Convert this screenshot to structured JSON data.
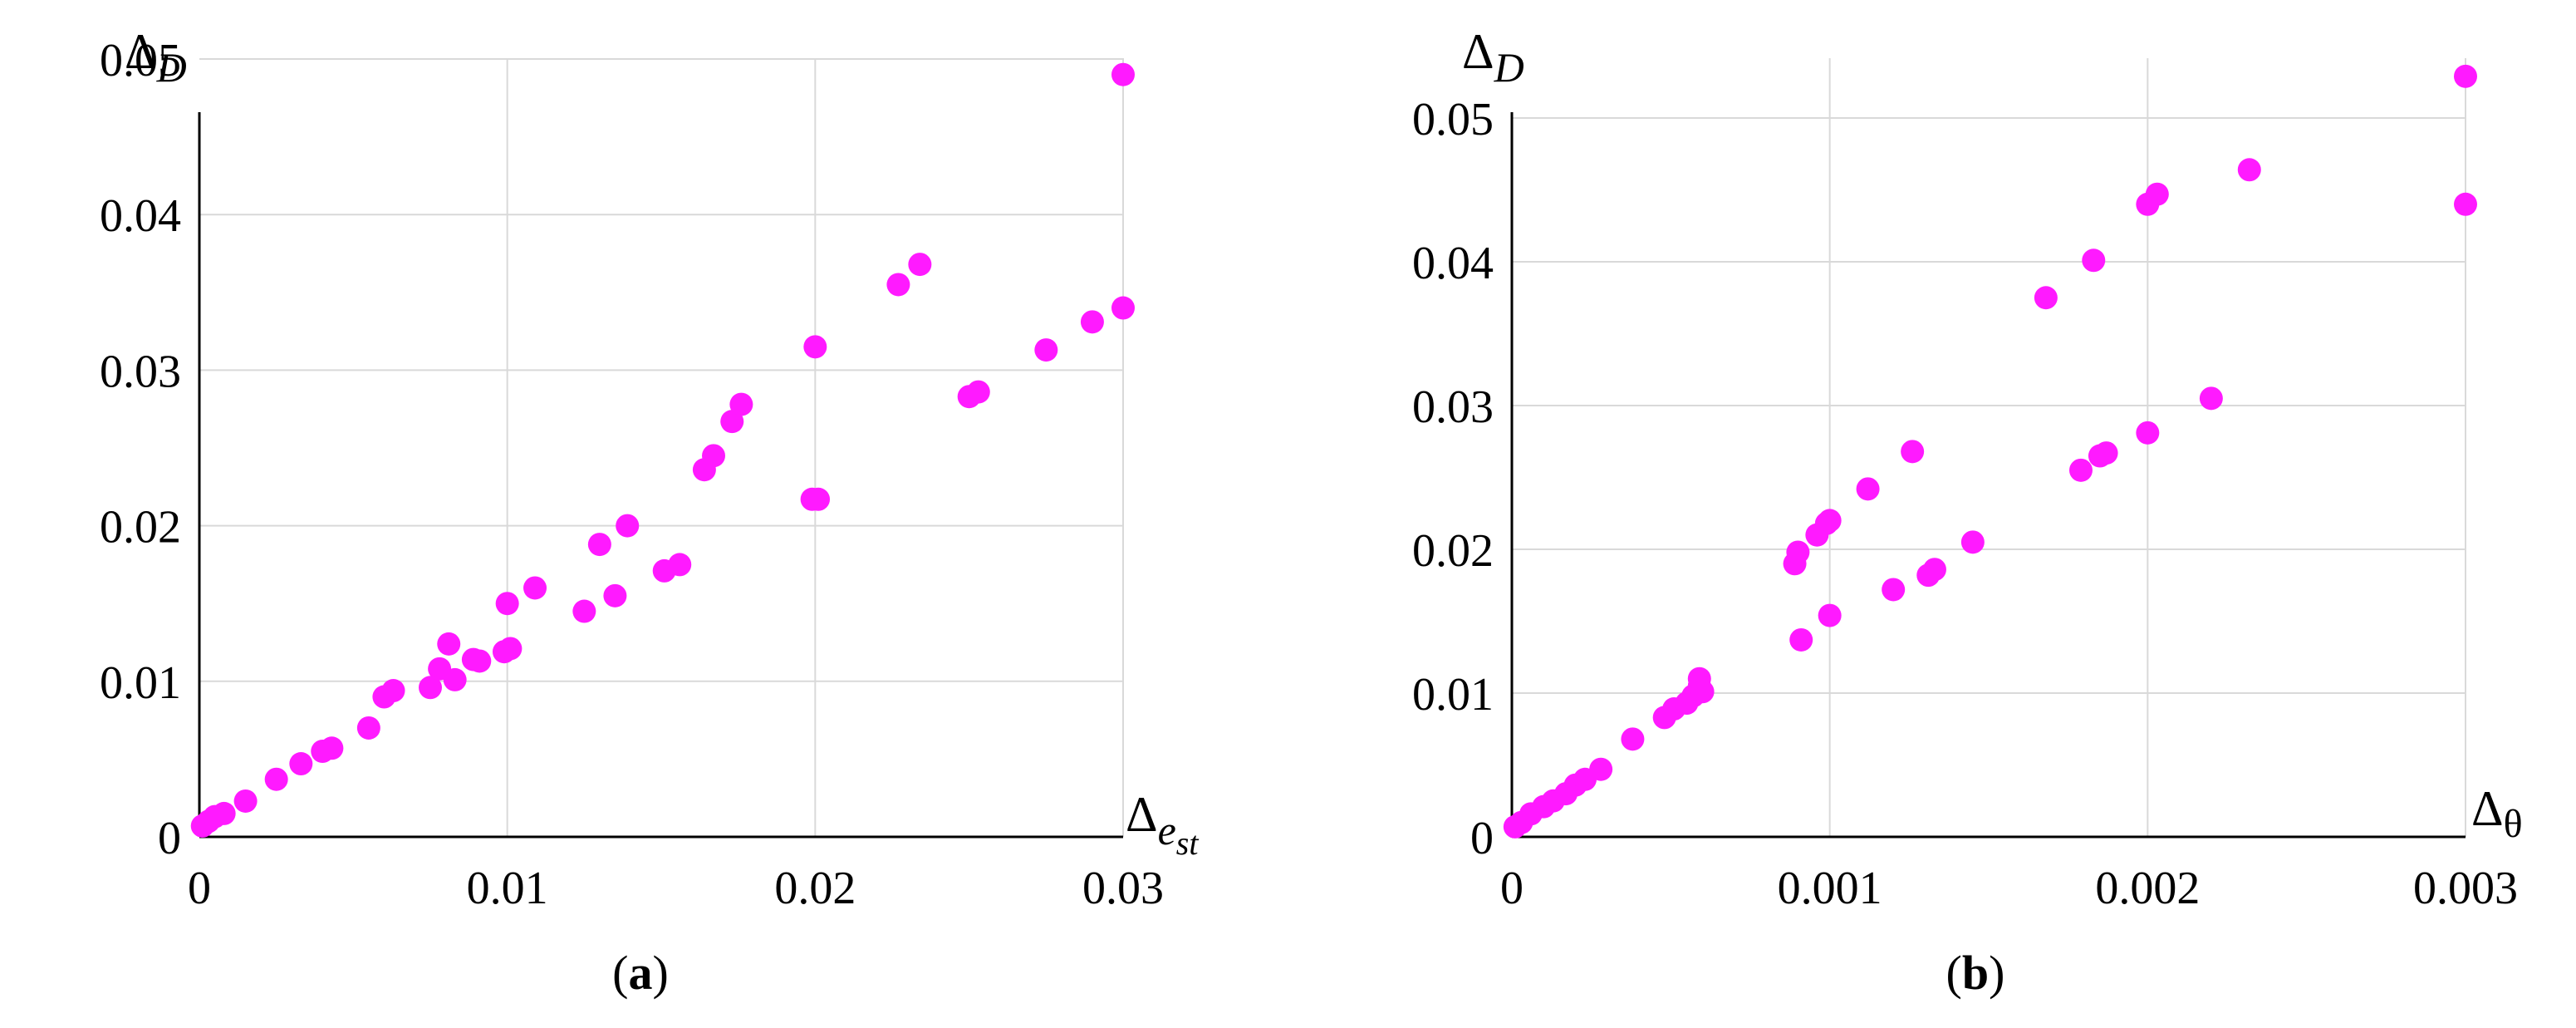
{
  "colors": {
    "marker": "#ff1aff",
    "grid": "#d9d9d9",
    "axis": "#000000"
  },
  "charts": [
    {
      "sublabel_letter": "a",
      "y_label_main": "Δ",
      "y_label_sub": "D",
      "x_label_main": "Δ",
      "x_label_sub": "e",
      "x_label_subsub": "st",
      "x_tick_labels": [
        "0",
        "0.01",
        "0.02",
        "0.03"
      ],
      "y_tick_labels": [
        "0",
        "0.01",
        "0.02",
        "0.03",
        "0.04",
        "0.05"
      ]
    },
    {
      "sublabel_letter": "b",
      "y_label_main": "Δ",
      "y_label_sub": "D",
      "x_label_main": "Δ",
      "x_label_sub": "θ",
      "x_tick_labels": [
        "0",
        "0.001",
        "0.002",
        "0.003"
      ],
      "y_tick_labels": [
        "0",
        "0.01",
        "0.02",
        "0.03",
        "0.04",
        "0.05"
      ]
    }
  ],
  "chart_data": [
    {
      "type": "scatter",
      "subplot": "(a)",
      "xlabel": "Δ_est",
      "ylabel": "Δ_D",
      "xlim": [
        0,
        0.03
      ],
      "ylim": [
        0,
        0.05
      ],
      "xticks": [
        0,
        0.01,
        0.02,
        0.03
      ],
      "yticks": [
        0,
        0.01,
        0.02,
        0.03,
        0.04,
        0.05
      ],
      "grid": true,
      "x": [
        0.0001,
        0.0003,
        0.0005,
        0.0008,
        0.0015,
        0.0025,
        0.0033,
        0.004,
        0.0043,
        0.0055,
        0.006,
        0.0063,
        0.0075,
        0.0078,
        0.0081,
        0.0083,
        0.0089,
        0.0091,
        0.0099,
        0.01,
        0.0101,
        0.0109,
        0.0125,
        0.013,
        0.0135,
        0.0139,
        0.0151,
        0.0156,
        0.0164,
        0.0167,
        0.0173,
        0.0176,
        0.0199,
        0.0201,
        0.02,
        0.0227,
        0.0234,
        0.025,
        0.0253,
        0.0275,
        0.029,
        0.03,
        0.03
      ],
      "y": [
        0.0007,
        0.001,
        0.0013,
        0.0015,
        0.0023,
        0.0037,
        0.0047,
        0.0055,
        0.0057,
        0.007,
        0.009,
        0.0094,
        0.0096,
        0.0108,
        0.0124,
        0.0101,
        0.0114,
        0.0113,
        0.0119,
        0.015,
        0.0121,
        0.016,
        0.0145,
        0.0188,
        0.0155,
        0.02,
        0.0171,
        0.0175,
        0.0236,
        0.0245,
        0.0267,
        0.0278,
        0.0217,
        0.0217,
        0.0315,
        0.0355,
        0.0368,
        0.0283,
        0.0286,
        0.0313,
        0.0331,
        0.034,
        0.049
      ]
    },
    {
      "type": "scatter",
      "subplot": "(b)",
      "xlabel": "Δ_θ",
      "ylabel": "Δ_D",
      "xlim": [
        0,
        0.003
      ],
      "ylim": [
        0,
        0.055
      ],
      "xticks": [
        0,
        0.001,
        0.002,
        0.003
      ],
      "yticks": [
        0,
        0.01,
        0.02,
        0.03,
        0.04,
        0.05
      ],
      "grid": true,
      "x": [
        1e-05,
        3e-05,
        6e-05,
        0.0001,
        0.00013,
        0.00017,
        0.0002,
        0.00023,
        0.00028,
        0.00038,
        0.00048,
        0.00051,
        0.00055,
        0.00057,
        0.00059,
        0.00059,
        0.0006,
        0.00089,
        0.0009,
        0.00091,
        0.00096,
        0.00099,
        0.001,
        0.001,
        0.00112,
        0.0012,
        0.00126,
        0.00131,
        0.00133,
        0.00145,
        0.00168,
        0.00179,
        0.00183,
        0.00185,
        0.00187,
        0.002,
        0.002,
        0.00203,
        0.0022,
        0.00232,
        0.003,
        0.003
      ],
      "y": [
        0.0007,
        0.001,
        0.0016,
        0.0021,
        0.0025,
        0.003,
        0.0036,
        0.004,
        0.0047,
        0.0068,
        0.0083,
        0.0089,
        0.0093,
        0.0098,
        0.0105,
        0.011,
        0.0101,
        0.019,
        0.0198,
        0.0137,
        0.021,
        0.0218,
        0.022,
        0.0154,
        0.0242,
        0.0172,
        0.0268,
        0.0182,
        0.0186,
        0.0205,
        0.0375,
        0.0255,
        0.0401,
        0.0265,
        0.0267,
        0.0281,
        0.044,
        0.0447,
        0.0305,
        0.0464,
        0.044,
        0.0529
      ]
    }
  ]
}
